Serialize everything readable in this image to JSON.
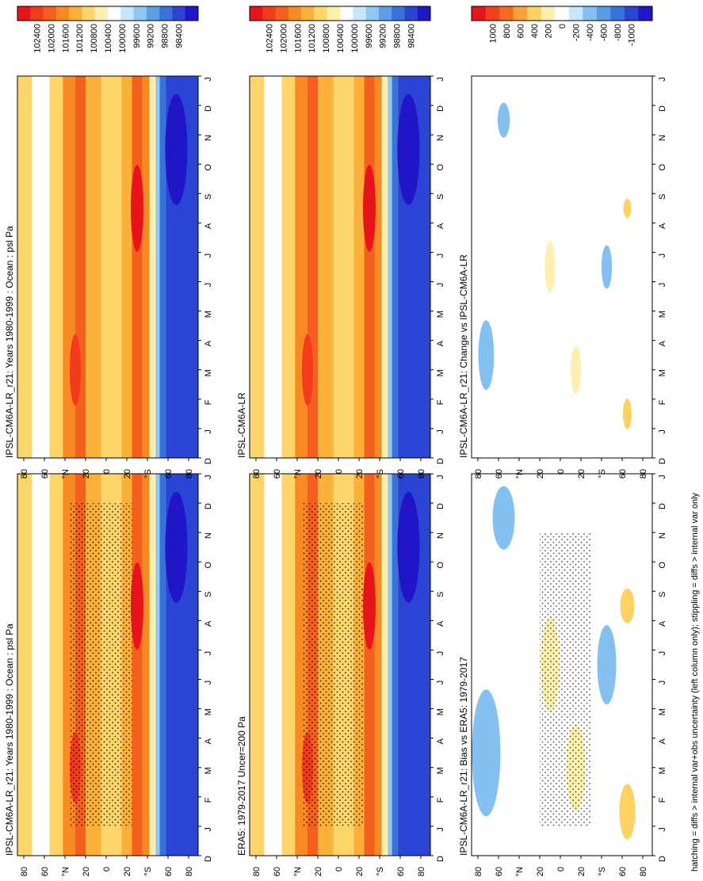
{
  "figure": {
    "orientation": "rotated 90 degrees counter-clockwise",
    "footer": "hatching = diffs > internal var+obs uncertainty (left column only); stippling = diffs > internal var only"
  },
  "chart_data": [
    {
      "type": "heatmap",
      "panel": "top-left",
      "title": "IPSL-CM6A-LR_r21: Years 1980-1999 : Ocean : psl Pa",
      "x_ticks": [
        "D",
        "J",
        "F",
        "M",
        "A",
        "M",
        "J",
        "J",
        "A",
        "S",
        "O",
        "N",
        "D",
        "J"
      ],
      "y_ticks": [
        "80",
        "60",
        "°N",
        "20",
        "0",
        "20",
        "°S",
        "60",
        "80"
      ],
      "colorbar": [
        "102400",
        "102000",
        "101600",
        "101200",
        "100800",
        "100400",
        "100000",
        "99600",
        "99200",
        "98800",
        "98400"
      ],
      "stippling": true,
      "hatching": true
    },
    {
      "type": "heatmap",
      "panel": "top-right",
      "title": "IPSL-CM6A-LR_r21: Years 1980-1999 : Ocean : psl Pa",
      "x_ticks": [
        "D",
        "J",
        "F",
        "M",
        "A",
        "M",
        "J",
        "J",
        "A",
        "S",
        "O",
        "N",
        "D",
        "J"
      ],
      "y_ticks": [
        "80",
        "60",
        "°N",
        "20",
        "0",
        "20",
        "°S",
        "60",
        "80"
      ],
      "colorbar": [
        "102400",
        "102000",
        "101600",
        "101200",
        "100800",
        "100400",
        "100000",
        "99600",
        "99200",
        "98800",
        "98400"
      ],
      "stippling": true,
      "hatching": false
    },
    {
      "type": "heatmap",
      "panel": "middle-left",
      "title": "ERA5: 1979-2017 Uncer=200 Pa",
      "x_ticks": [
        "D",
        "J",
        "F",
        "M",
        "A",
        "M",
        "J",
        "J",
        "A",
        "S",
        "O",
        "N",
        "D",
        "J"
      ],
      "y_ticks": [
        "80",
        "60",
        "°N",
        "20",
        "0",
        "20",
        "°S",
        "60",
        "80"
      ],
      "colorbar": [
        "102400",
        "102000",
        "101600",
        "101200",
        "100800",
        "100400",
        "100000",
        "99600",
        "99200",
        "98800",
        "98400"
      ],
      "stippling": true,
      "hatching": true
    },
    {
      "type": "heatmap",
      "panel": "middle-right",
      "title": "IPSL-CM6A-LR",
      "x_ticks": [
        "D",
        "J",
        "F",
        "M",
        "A",
        "M",
        "J",
        "J",
        "A",
        "S",
        "O",
        "N",
        "D",
        "J"
      ],
      "y_ticks": [
        "80",
        "60",
        "°N",
        "20",
        "0",
        "20",
        "°S",
        "60",
        "80"
      ],
      "colorbar": [
        "102400",
        "102000",
        "101600",
        "101200",
        "100800",
        "100400",
        "100000",
        "99600",
        "99200",
        "98800",
        "98400"
      ],
      "stippling": true,
      "hatching": false
    },
    {
      "type": "heatmap",
      "panel": "bottom-left",
      "title": "IPSL-CM6A-LR_r21: Bias vs ERA5: 1979-2017",
      "x_ticks": [
        "D",
        "J",
        "F",
        "M",
        "A",
        "M",
        "J",
        "J",
        "A",
        "S",
        "O",
        "N",
        "D",
        "J"
      ],
      "y_ticks": [
        "80",
        "60",
        "°N",
        "20",
        "0",
        "20",
        "°S",
        "60",
        "80"
      ],
      "colorbar": [
        "1000",
        "800",
        "600",
        "400",
        "200",
        "0",
        "-200",
        "-400",
        "-600",
        "-800",
        "-1000"
      ],
      "stippling": true,
      "hatching": true
    },
    {
      "type": "heatmap",
      "panel": "bottom-right",
      "title": "IPSL-CM6A-LR_r21: Change vs IPSL-CM6A-LR",
      "x_ticks": [
        "D",
        "J",
        "F",
        "M",
        "A",
        "M",
        "J",
        "J",
        "A",
        "S",
        "O",
        "N",
        "D",
        "J"
      ],
      "y_ticks": [
        "80",
        "60",
        "°N",
        "20",
        "0",
        "20",
        "°S",
        "60",
        "80"
      ],
      "colorbar": [
        "1000",
        "800",
        "600",
        "400",
        "200",
        "0",
        "-200",
        "-400",
        "-600",
        "-800",
        "-1000"
      ],
      "stippling": true,
      "hatching": false
    }
  ]
}
